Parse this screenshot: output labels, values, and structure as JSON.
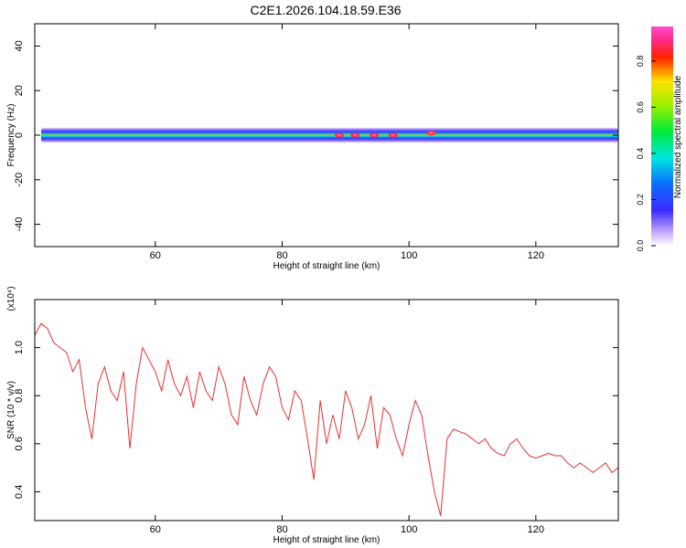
{
  "title": "C2E1.2026.104.18.59.E36",
  "chart_data": [
    {
      "type": "heatmap",
      "title": "C2E1.2026.104.18.59.E36",
      "xlabel": "Height of straight line (km)",
      "ylabel": "Frequency (Hz)",
      "xlim": [
        41,
        133
      ],
      "ylim": [
        -50,
        50
      ],
      "xticks": [
        60,
        80,
        100,
        120
      ],
      "yticks": [
        -40,
        -20,
        0,
        20,
        40
      ],
      "colorbar": {
        "label": "Normalized spectral amplitude",
        "range": [
          0,
          0.95
        ],
        "ticks": [
          0.0,
          0.2,
          0.4,
          0.6,
          0.8
        ]
      },
      "band": {
        "center_hz": 0,
        "half_width_hz": 2.5,
        "x_start": 42,
        "x_end": 133
      },
      "peaks": [
        {
          "x": 89,
          "y": 0,
          "value": 0.9
        },
        {
          "x": 91.5,
          "y": 0,
          "value": 0.9
        },
        {
          "x": 94.5,
          "y": 0,
          "value": 0.9
        },
        {
          "x": 97.5,
          "y": 0,
          "value": 0.75
        },
        {
          "x": 103.5,
          "y": 1,
          "value": 0.92
        }
      ]
    },
    {
      "type": "line",
      "xlabel": "Height of straight line (km)",
      "ylabel": "SNR (10 * v/v)",
      "y_multiplier": "(x10⁴)",
      "xlim": [
        41,
        133
      ],
      "ylim": [
        0.28,
        1.2
      ],
      "xticks": [
        60,
        80,
        100,
        120
      ],
      "yticks": [
        0.4,
        0.6,
        0.8,
        1.0
      ],
      "color": "#e8312f",
      "x": [
        41,
        42,
        43,
        44,
        45,
        46,
        47,
        48,
        49,
        50,
        51,
        52,
        53,
        54,
        55,
        56,
        57,
        58,
        59,
        60,
        61,
        62,
        63,
        64,
        65,
        66,
        67,
        68,
        69,
        70,
        71,
        72,
        73,
        74,
        75,
        76,
        77,
        78,
        79,
        80,
        81,
        82,
        83,
        84,
        85,
        86,
        87,
        88,
        89,
        90,
        91,
        92,
        93,
        94,
        95,
        96,
        97,
        98,
        99,
        100,
        101,
        102,
        103,
        104,
        105,
        106,
        107,
        108,
        109,
        110,
        111,
        112,
        113,
        114,
        115,
        116,
        117,
        118,
        119,
        120,
        121,
        122,
        123,
        124,
        125,
        126,
        127,
        128,
        129,
        130,
        131,
        132,
        133
      ],
      "y": [
        1.05,
        1.1,
        1.08,
        1.02,
        1.0,
        0.98,
        0.9,
        0.95,
        0.75,
        0.62,
        0.85,
        0.92,
        0.82,
        0.78,
        0.9,
        0.58,
        0.85,
        1.0,
        0.95,
        0.9,
        0.82,
        0.95,
        0.85,
        0.8,
        0.88,
        0.75,
        0.9,
        0.82,
        0.78,
        0.92,
        0.85,
        0.72,
        0.68,
        0.88,
        0.78,
        0.72,
        0.85,
        0.92,
        0.88,
        0.75,
        0.7,
        0.82,
        0.78,
        0.62,
        0.45,
        0.78,
        0.6,
        0.72,
        0.62,
        0.82,
        0.75,
        0.62,
        0.68,
        0.8,
        0.58,
        0.75,
        0.72,
        0.62,
        0.55,
        0.68,
        0.78,
        0.72,
        0.55,
        0.4,
        0.3,
        0.62,
        0.66,
        0.65,
        0.64,
        0.62,
        0.6,
        0.62,
        0.58,
        0.56,
        0.55,
        0.6,
        0.62,
        0.58,
        0.55,
        0.54,
        0.55,
        0.56,
        0.55,
        0.55,
        0.52,
        0.5,
        0.52,
        0.5,
        0.48,
        0.5,
        0.52,
        0.48,
        0.5
      ]
    }
  ]
}
